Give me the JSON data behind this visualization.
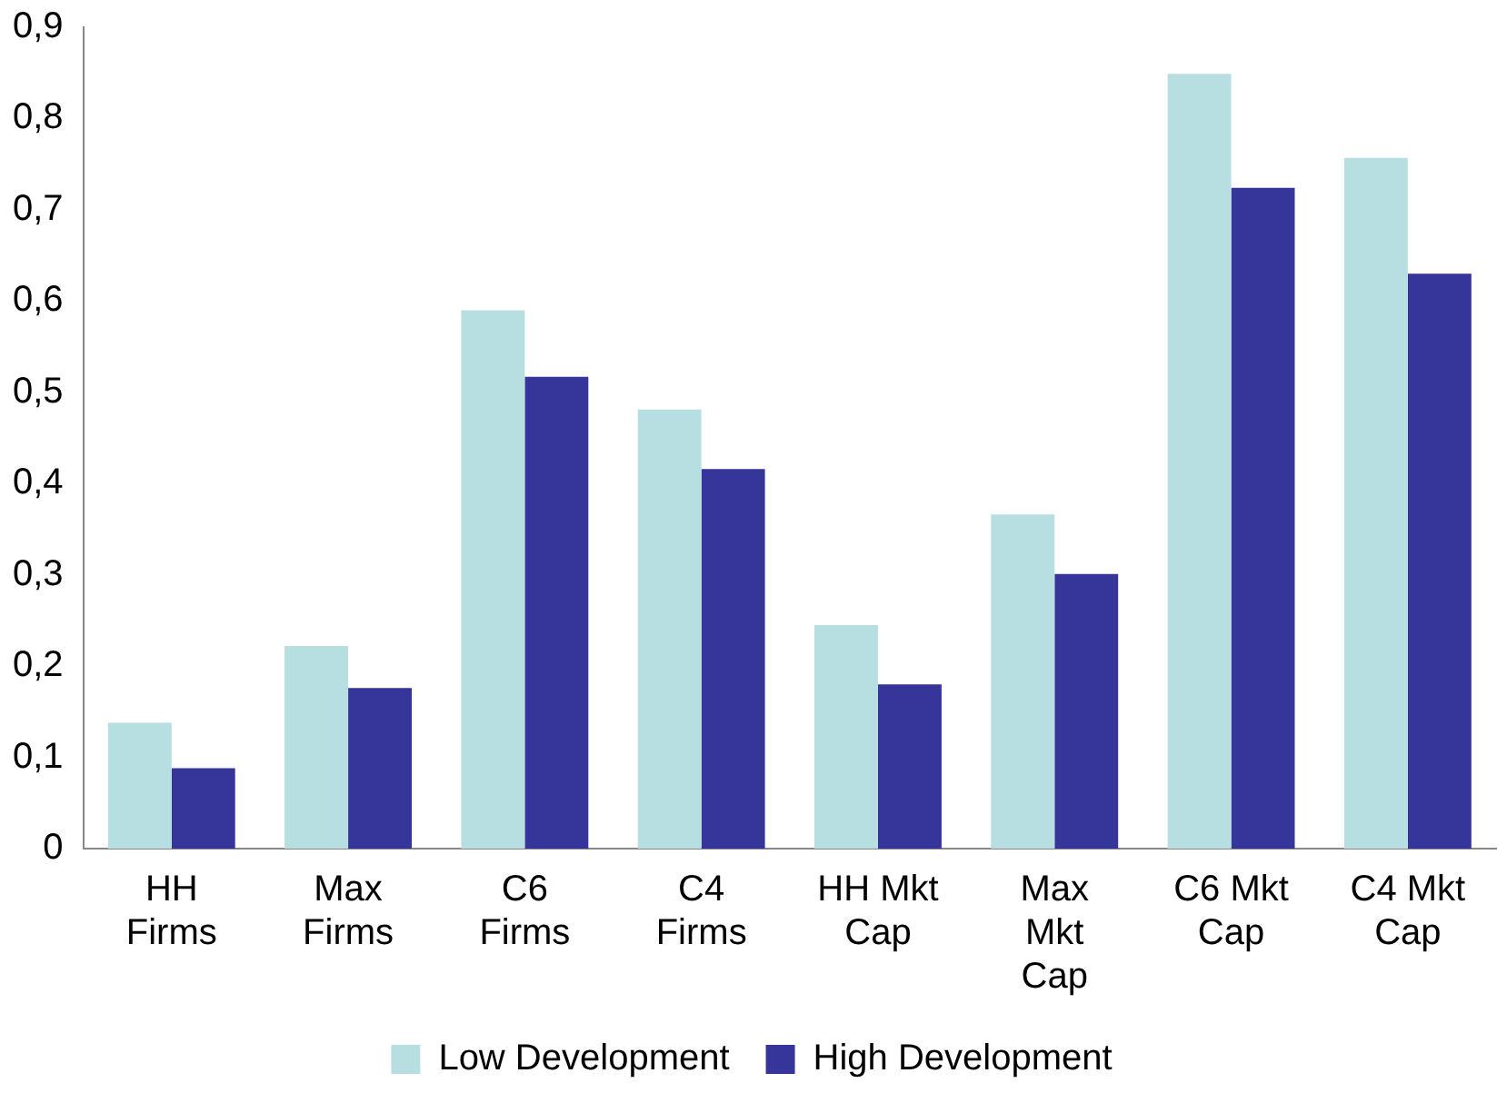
{
  "chart_data": {
    "type": "bar",
    "categories": [
      "HH Firms",
      "Max Firms",
      "C6 Firms",
      "C4 Firms",
      "HH Mkt Cap",
      "Max Mkt Cap",
      "C6 Mkt Cap",
      "C4 Mkt Cap"
    ],
    "series": [
      {
        "name": "Low Development",
        "color": "#b7dfe2",
        "values": [
          0.138,
          0.222,
          0.59,
          0.481,
          0.245,
          0.366,
          0.849,
          0.757
        ]
      },
      {
        "name": "High Development",
        "color": "#35359a",
        "values": [
          0.088,
          0.176,
          0.517,
          0.416,
          0.18,
          0.301,
          0.724,
          0.63
        ]
      }
    ],
    "ylim": [
      0,
      0.9
    ],
    "yticks": [
      0,
      {
        "value": 0.1,
        "label": "0,1"
      },
      {
        "value": 0.2,
        "label": "0,2"
      },
      {
        "value": 0.3,
        "label": "0,3"
      },
      {
        "value": 0.4,
        "label": "0,4"
      },
      {
        "value": 0.5,
        "label": "0,5"
      },
      {
        "value": 0.6,
        "label": "0,6"
      },
      {
        "value": 0.7,
        "label": "0,7"
      },
      {
        "value": 0.8,
        "label": "0,8"
      },
      {
        "value": 0.9,
        "label": "0,9"
      }
    ],
    "grid": false,
    "legend": "bottom"
  }
}
